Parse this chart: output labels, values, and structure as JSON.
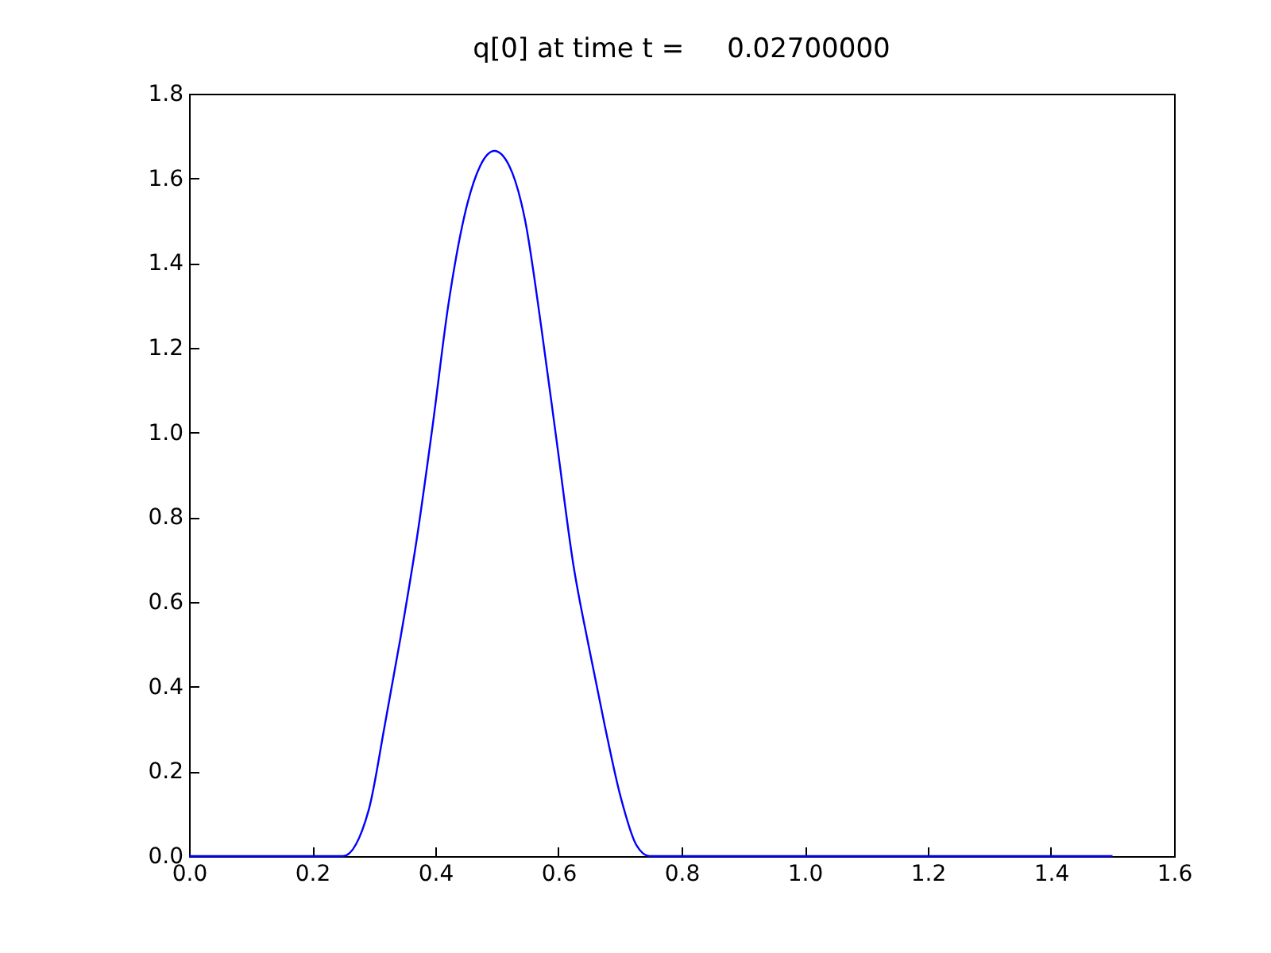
{
  "chart_data": {
    "type": "line",
    "title": "q[0] at time t =     0.02700000",
    "x": [
      0,
      0.25,
      0.292,
      0.318,
      0.344,
      0.37,
      0.396,
      0.421,
      0.447,
      0.473,
      0.496,
      0.52,
      0.546,
      0.572,
      0.598,
      0.624,
      0.65,
      0.675,
      0.701,
      0.727,
      0.748,
      1.5
    ],
    "series": [
      {
        "color": "#0000ff",
        "values": [
          0,
          0,
          0.11,
          0.31,
          0.52,
          0.75,
          1.02,
          1.3,
          1.51,
          1.63,
          1.665,
          1.63,
          1.5,
          1.25,
          0.97,
          0.69,
          0.49,
          0.31,
          0.14,
          0.025,
          0,
          0
        ]
      }
    ],
    "xlim": [
      0,
      1.6
    ],
    "xticks": [
      {
        "value": 0,
        "label": "0.0"
      },
      0.2,
      0.4,
      0.6,
      0.8,
      {
        "value": 1,
        "label": "1.0"
      },
      1.2,
      1.4,
      1.6
    ],
    "ylim": [
      0,
      1.8
    ],
    "yticks": [
      {
        "value": 0,
        "label": "0.0"
      },
      0.2,
      0.4,
      0.6,
      0.8,
      {
        "value": 1,
        "label": "1.0"
      },
      1.2,
      1.4,
      1.6,
      1.8
    ],
    "grid": false,
    "marker": "none",
    "line_style": "solid"
  }
}
